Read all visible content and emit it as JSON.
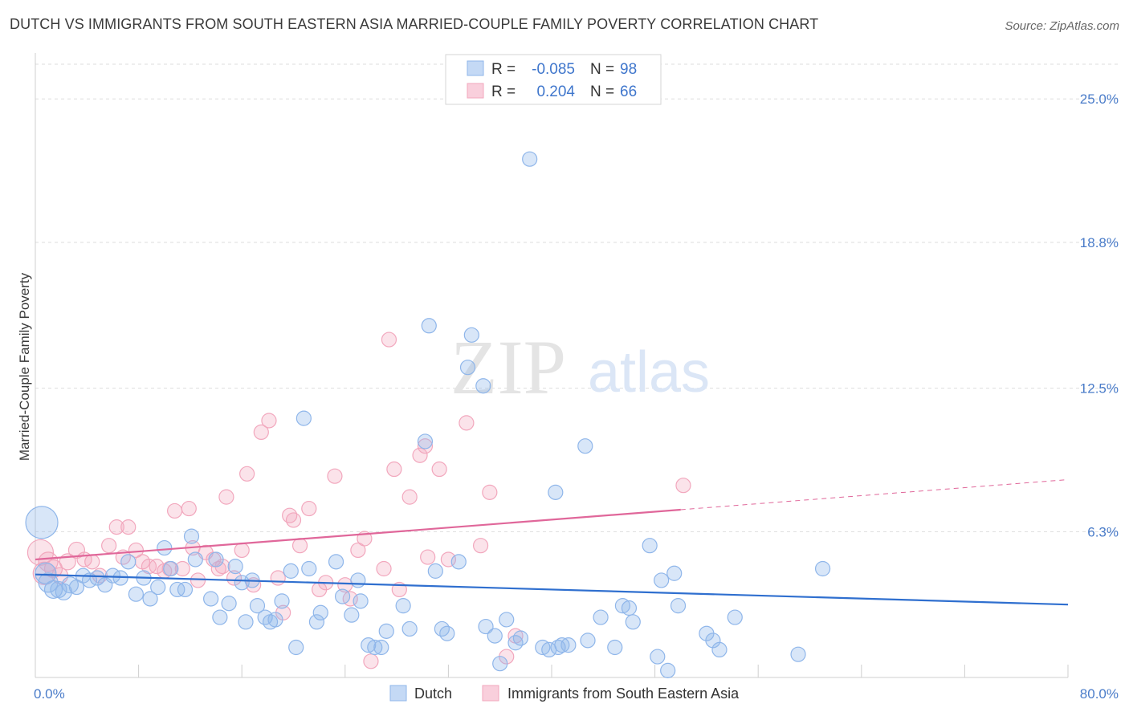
{
  "title": "DUTCH VS IMMIGRANTS FROM SOUTH EASTERN ASIA MARRIED-COUPLE FAMILY POVERTY CORRELATION CHART",
  "source": "Source: ZipAtlas.com",
  "watermark": {
    "zip": "ZIP",
    "atlas": "atlas"
  },
  "colors": {
    "dutch": "#8fb6ea",
    "dutch_line": "#2f6fcf",
    "sea": "#f2a7bd",
    "sea_line": "#e0679a",
    "tick": "#4a7cc9",
    "grid": "#dddddd"
  },
  "legend": {
    "rows": [
      {
        "r_label": "R =",
        "r_value": "-0.085",
        "n_label": "N =",
        "n_value": "98"
      },
      {
        "r_label": "R =",
        "r_value": "0.204",
        "n_label": "N =",
        "n_value": "66"
      }
    ]
  },
  "bottom_legend": [
    "Dutch",
    "Immigrants from South Eastern Asia"
  ],
  "chart_data": {
    "type": "scatter",
    "title": "DUTCH VS IMMIGRANTS FROM SOUTH EASTERN ASIA MARRIED-COUPLE FAMILY POVERTY CORRELATION CHART",
    "xlabel": "",
    "ylabel": "Married-Couple Family Poverty",
    "xlim": [
      0,
      80
    ],
    "ylim": [
      0,
      26.5
    ],
    "x_tick_labels": [
      "0.0%",
      "80.0%"
    ],
    "y_ticks": [
      6.3,
      12.5,
      18.8,
      25.0
    ],
    "y_tick_labels": [
      "6.3%",
      "12.5%",
      "18.8%",
      "25.0%"
    ],
    "grid": true,
    "series": [
      {
        "name": "Dutch",
        "r": -0.085,
        "n": 98,
        "trend": {
          "x": [
            0,
            80
          ],
          "y": [
            4.45,
            3.15
          ]
        },
        "points": [
          [
            0.5,
            6.7,
            20
          ],
          [
            0.8,
            4.5,
            13
          ],
          [
            1.0,
            4.1,
            12
          ],
          [
            1.4,
            3.8,
            11
          ],
          [
            1.8,
            3.8,
            10
          ],
          [
            2.2,
            3.7,
            10
          ],
          [
            2.7,
            4.0,
            10
          ],
          [
            3.2,
            3.9,
            9
          ],
          [
            3.7,
            4.4,
            9
          ],
          [
            4.2,
            4.2,
            9
          ],
          [
            4.8,
            4.3,
            9
          ],
          [
            5.4,
            4.0,
            9
          ],
          [
            6.0,
            4.4,
            9
          ],
          [
            6.6,
            4.3,
            9
          ],
          [
            7.2,
            5.0,
            9
          ],
          [
            7.8,
            3.6,
            9
          ],
          [
            8.4,
            4.3,
            9
          ],
          [
            8.9,
            3.4,
            9
          ],
          [
            9.5,
            3.9,
            9
          ],
          [
            10.0,
            5.6,
            9
          ],
          [
            10.5,
            4.7,
            9
          ],
          [
            11.0,
            3.8,
            9
          ],
          [
            11.6,
            3.8,
            9
          ],
          [
            12.1,
            6.1,
            9
          ],
          [
            12.4,
            5.1,
            9
          ],
          [
            13.6,
            3.4,
            9
          ],
          [
            14.0,
            5.1,
            9
          ],
          [
            14.3,
            2.6,
            9
          ],
          [
            15.0,
            3.2,
            9
          ],
          [
            15.5,
            4.8,
            9
          ],
          [
            16.0,
            4.1,
            9
          ],
          [
            16.3,
            2.4,
            9
          ],
          [
            16.8,
            4.2,
            9
          ],
          [
            17.2,
            3.1,
            9
          ],
          [
            17.8,
            2.6,
            9
          ],
          [
            18.2,
            2.4,
            9
          ],
          [
            18.6,
            2.5,
            9
          ],
          [
            19.1,
            3.3,
            9
          ],
          [
            19.8,
            4.6,
            9
          ],
          [
            20.2,
            1.3,
            9
          ],
          [
            20.8,
            11.2,
            9
          ],
          [
            21.2,
            4.7,
            9
          ],
          [
            21.8,
            2.4,
            9
          ],
          [
            22.1,
            2.8,
            9
          ],
          [
            23.3,
            5.0,
            9
          ],
          [
            23.8,
            3.5,
            9
          ],
          [
            24.5,
            2.7,
            9
          ],
          [
            25.0,
            4.2,
            9
          ],
          [
            25.2,
            3.3,
            9
          ],
          [
            25.8,
            1.4,
            9
          ],
          [
            26.3,
            1.3,
            9
          ],
          [
            26.8,
            1.3,
            9
          ],
          [
            27.2,
            2.0,
            9
          ],
          [
            28.5,
            3.1,
            9
          ],
          [
            29.0,
            2.1,
            9
          ],
          [
            30.2,
            10.2,
            9
          ],
          [
            30.5,
            15.2,
            9
          ],
          [
            31.0,
            4.6,
            9
          ],
          [
            31.5,
            2.1,
            9
          ],
          [
            31.9,
            1.9,
            9
          ],
          [
            32.8,
            5.0,
            9
          ],
          [
            33.5,
            13.4,
            9
          ],
          [
            33.8,
            14.8,
            9
          ],
          [
            34.7,
            12.6,
            9
          ],
          [
            34.9,
            2.2,
            9
          ],
          [
            35.6,
            1.8,
            9
          ],
          [
            36.0,
            0.6,
            9
          ],
          [
            36.5,
            2.5,
            9
          ],
          [
            37.2,
            1.5,
            9
          ],
          [
            37.6,
            1.7,
            9
          ],
          [
            38.3,
            22.4,
            9
          ],
          [
            39.3,
            1.3,
            9
          ],
          [
            39.8,
            1.2,
            9
          ],
          [
            40.3,
            8.0,
            9
          ],
          [
            40.5,
            1.3,
            9
          ],
          [
            40.8,
            1.4,
            9
          ],
          [
            41.3,
            1.4,
            9
          ],
          [
            42.6,
            10.0,
            9
          ],
          [
            42.8,
            1.6,
            9
          ],
          [
            43.8,
            2.6,
            9
          ],
          [
            44.9,
            1.3,
            9
          ],
          [
            45.5,
            3.1,
            9
          ],
          [
            46.0,
            3.0,
            9
          ],
          [
            46.3,
            2.4,
            9
          ],
          [
            47.6,
            5.7,
            9
          ],
          [
            48.2,
            0.9,
            9
          ],
          [
            48.5,
            4.2,
            9
          ],
          [
            49.5,
            4.5,
            9
          ],
          [
            49.8,
            3.1,
            9
          ],
          [
            52.0,
            1.9,
            9
          ],
          [
            52.5,
            1.6,
            9
          ],
          [
            53.0,
            1.2,
            9
          ],
          [
            54.2,
            2.6,
            9
          ],
          [
            59.1,
            1.0,
            9
          ],
          [
            61.0,
            4.7,
            9
          ],
          [
            49.0,
            0.3,
            9
          ]
        ]
      },
      {
        "name": "Immigrants from South Eastern Asia",
        "r": 0.204,
        "n": 66,
        "trend": {
          "x": [
            0,
            50
          ],
          "y": [
            5.1,
            7.25
          ]
        },
        "trend_dashed": {
          "x": [
            50,
            80
          ],
          "y": [
            7.25,
            8.55
          ]
        },
        "points": [
          [
            0.4,
            5.4,
            16
          ],
          [
            0.7,
            4.5,
            14
          ],
          [
            1.0,
            5.0,
            12
          ],
          [
            1.4,
            4.7,
            11
          ],
          [
            1.9,
            4.4,
            10
          ],
          [
            2.5,
            5.0,
            10
          ],
          [
            3.2,
            5.5,
            10
          ],
          [
            3.8,
            5.1,
            9
          ],
          [
            4.4,
            5.0,
            9
          ],
          [
            5.0,
            4.4,
            9
          ],
          [
            5.7,
            5.7,
            9
          ],
          [
            6.3,
            6.5,
            9
          ],
          [
            6.8,
            5.2,
            9
          ],
          [
            7.2,
            6.5,
            9
          ],
          [
            7.8,
            5.5,
            9
          ],
          [
            8.3,
            5.0,
            9
          ],
          [
            8.8,
            4.8,
            9
          ],
          [
            9.4,
            4.8,
            9
          ],
          [
            10.0,
            4.6,
            9
          ],
          [
            10.4,
            4.7,
            9
          ],
          [
            10.8,
            7.2,
            9
          ],
          [
            11.4,
            4.7,
            9
          ],
          [
            11.9,
            7.3,
            9
          ],
          [
            12.2,
            5.6,
            9
          ],
          [
            12.6,
            4.2,
            9
          ],
          [
            13.2,
            5.4,
            9
          ],
          [
            13.8,
            5.1,
            9
          ],
          [
            14.2,
            4.7,
            9
          ],
          [
            14.5,
            4.8,
            9
          ],
          [
            14.8,
            7.8,
            9
          ],
          [
            15.4,
            4.3,
            9
          ],
          [
            16.0,
            5.5,
            9
          ],
          [
            16.4,
            8.8,
            9
          ],
          [
            16.9,
            4.0,
            9
          ],
          [
            17.5,
            10.6,
            9
          ],
          [
            18.1,
            11.1,
            9
          ],
          [
            18.8,
            4.3,
            9
          ],
          [
            19.2,
            2.8,
            9
          ],
          [
            19.7,
            7.0,
            9
          ],
          [
            20.0,
            6.8,
            9
          ],
          [
            20.5,
            5.7,
            9
          ],
          [
            21.2,
            7.3,
            9
          ],
          [
            22.0,
            3.8,
            9
          ],
          [
            22.5,
            4.1,
            9
          ],
          [
            23.2,
            8.7,
            9
          ],
          [
            24.0,
            4.0,
            9
          ],
          [
            24.4,
            3.4,
            9
          ],
          [
            25.5,
            6.0,
            9
          ],
          [
            26.0,
            0.7,
            9
          ],
          [
            27.0,
            4.7,
            9
          ],
          [
            27.4,
            14.6,
            9
          ],
          [
            27.8,
            9.0,
            9
          ],
          [
            28.2,
            3.8,
            9
          ],
          [
            29.0,
            7.8,
            9
          ],
          [
            29.8,
            9.6,
            9
          ],
          [
            30.2,
            10.0,
            9
          ],
          [
            31.3,
            9.0,
            9
          ],
          [
            32.0,
            5.1,
            9
          ],
          [
            33.4,
            11.0,
            9
          ],
          [
            34.5,
            5.7,
            9
          ],
          [
            35.2,
            8.0,
            9
          ],
          [
            36.5,
            0.9,
            9
          ],
          [
            37.2,
            1.8,
            9
          ],
          [
            25.0,
            5.5,
            9
          ],
          [
            30.4,
            5.2,
            9
          ],
          [
            50.2,
            8.3,
            9
          ]
        ]
      }
    ]
  }
}
